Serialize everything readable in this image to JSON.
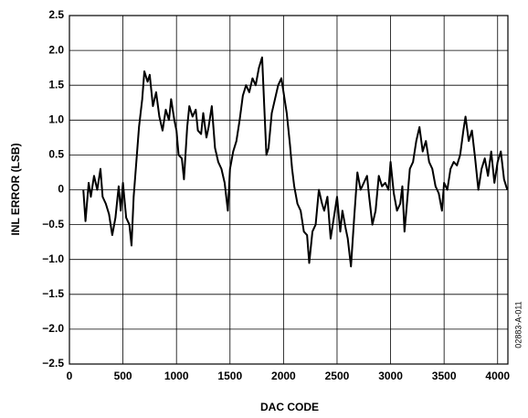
{
  "chart_data": {
    "type": "line",
    "x_label": "DAC CODE",
    "y_label": "INL ERROR (LSB)",
    "annotation": "02883-A-011",
    "xlim": [
      0,
      4096
    ],
    "ylim": [
      -2.5,
      2.5
    ],
    "xticks": [
      0,
      500,
      1000,
      1500,
      2000,
      2500,
      3000,
      3500,
      4000
    ],
    "yticks": [
      {
        "value": -2.5,
        "label": "−2.5"
      },
      {
        "value": -2,
        "label": "−2.0"
      },
      {
        "value": -1.5,
        "label": "−1.5"
      },
      {
        "value": -1,
        "label": "−1.0"
      },
      {
        "value": -0.5,
        "label": "−0.5"
      },
      0,
      0.5,
      {
        "value": 1,
        "label": "1.0"
      },
      1.5,
      {
        "value": 2,
        "label": "2.0"
      },
      2.5
    ],
    "grid": true,
    "color": "#000000",
    "x": [
      130,
      150,
      180,
      200,
      230,
      260,
      290,
      310,
      340,
      370,
      400,
      430,
      460,
      480,
      500,
      530,
      560,
      580,
      600,
      620,
      650,
      680,
      700,
      730,
      750,
      780,
      810,
      840,
      870,
      900,
      930,
      950,
      980,
      1000,
      1020,
      1050,
      1070,
      1100,
      1120,
      1150,
      1180,
      1200,
      1230,
      1250,
      1280,
      1300,
      1330,
      1360,
      1390,
      1420,
      1450,
      1480,
      1500,
      1530,
      1560,
      1590,
      1620,
      1650,
      1680,
      1710,
      1740,
      1770,
      1800,
      1820,
      1840,
      1860,
      1890,
      1920,
      1950,
      1980,
      2000,
      2030,
      2060,
      2080,
      2100,
      2130,
      2160,
      2190,
      2220,
      2240,
      2270,
      2300,
      2330,
      2360,
      2380,
      2410,
      2440,
      2470,
      2500,
      2530,
      2550,
      2580,
      2600,
      2630,
      2660,
      2690,
      2720,
      2750,
      2780,
      2800,
      2830,
      2860,
      2890,
      2920,
      2950,
      2980,
      3000,
      3030,
      3060,
      3090,
      3110,
      3130,
      3150,
      3180,
      3210,
      3240,
      3270,
      3300,
      3330,
      3360,
      3390,
      3420,
      3450,
      3480,
      3500,
      3530,
      3560,
      3590,
      3620,
      3650,
      3680,
      3700,
      3730,
      3760,
      3790,
      3820,
      3850,
      3880,
      3910,
      3940,
      3970,
      4000,
      4030,
      4060,
      4090
    ],
    "values": [
      0,
      -0.45,
      0.1,
      -0.1,
      0.2,
      0,
      0.3,
      -0.1,
      -0.2,
      -0.35,
      -0.65,
      -0.4,
      0.05,
      -0.3,
      0.1,
      -0.4,
      -0.5,
      -0.8,
      -0.1,
      0.3,
      0.9,
      1.3,
      1.7,
      1.55,
      1.65,
      1.2,
      1.4,
      1.05,
      0.85,
      1.15,
      1.0,
      1.3,
      1.0,
      0.85,
      0.5,
      0.45,
      0.15,
      0.9,
      1.2,
      1.05,
      1.15,
      0.85,
      0.8,
      1.1,
      0.75,
      0.9,
      1.2,
      0.6,
      0.4,
      0.3,
      0.1,
      -0.3,
      0.3,
      0.55,
      0.7,
      1.0,
      1.35,
      1.5,
      1.4,
      1.6,
      1.5,
      1.75,
      1.9,
      1.2,
      0.5,
      0.6,
      1.1,
      1.3,
      1.5,
      1.6,
      1.4,
      1.1,
      0.65,
      0.3,
      0.05,
      -0.2,
      -0.3,
      -0.6,
      -0.65,
      -1.05,
      -0.6,
      -0.5,
      0,
      -0.2,
      -0.3,
      -0.1,
      -0.7,
      -0.4,
      -0.1,
      -0.6,
      -0.3,
      -0.55,
      -0.7,
      -1.1,
      -0.4,
      0.25,
      0,
      0.1,
      0.2,
      -0.1,
      -0.5,
      -0.3,
      0.2,
      0.05,
      0.1,
      0,
      0.4,
      -0.05,
      -0.3,
      -0.2,
      0.05,
      -0.6,
      -0.25,
      0.3,
      0.4,
      0.7,
      0.9,
      0.55,
      0.7,
      0.4,
      0.3,
      0.05,
      -0.05,
      -0.3,
      0.1,
      0,
      0.3,
      0.4,
      0.35,
      0.5,
      0.85,
      1.05,
      0.7,
      0.85,
      0.45,
      0,
      0.3,
      0.45,
      0.2,
      0.55,
      0.1,
      0.4,
      0.55,
      0.15,
      0
    ]
  }
}
